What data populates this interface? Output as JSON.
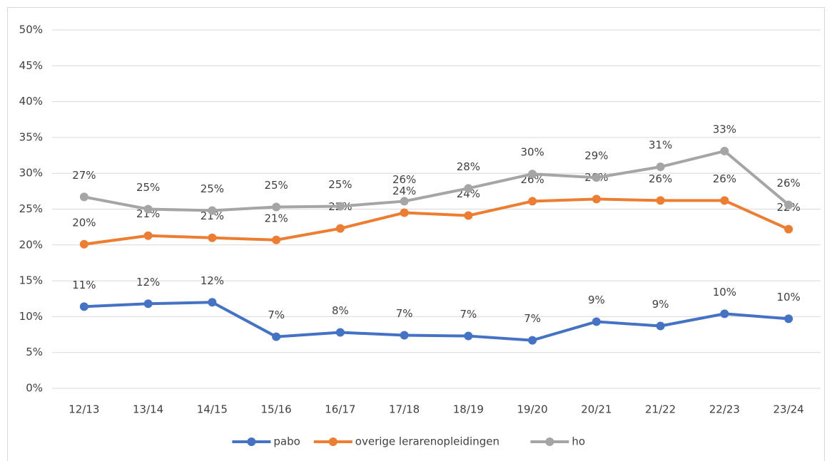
{
  "chart_data": {
    "type": "line",
    "categories": [
      "12/13",
      "13/14",
      "14/15",
      "15/16",
      "16/17",
      "17/18",
      "18/19",
      "19/20",
      "20/21",
      "21/22",
      "22/23",
      "23/24"
    ],
    "series": [
      {
        "name": "pabo",
        "color": "#4472c4",
        "values": [
          11.4,
          11.8,
          12.0,
          7.2,
          7.8,
          7.4,
          7.3,
          6.7,
          9.3,
          8.7,
          10.4,
          9.7
        ],
        "value_labels": [
          "11%",
          "12%",
          "12%",
          "7%",
          "8%",
          "7%",
          "7%",
          "7%",
          "9%",
          "9%",
          "10%",
          "10%"
        ]
      },
      {
        "name": "overige lerarenopleidingen",
        "color": "#ed7d31",
        "values": [
          20.1,
          21.3,
          21.0,
          20.7,
          22.3,
          24.5,
          24.1,
          26.1,
          26.4,
          26.2,
          26.2,
          22.2
        ],
        "value_labels": [
          "20%",
          "21%",
          "21%",
          "21%",
          "22%",
          "24%",
          "24%",
          "26%",
          "26%",
          "26%",
          "26%",
          "22%"
        ]
      },
      {
        "name": "ho",
        "color": "#a5a5a5",
        "values": [
          26.7,
          25.0,
          24.8,
          25.3,
          25.4,
          26.1,
          27.9,
          29.9,
          29.4,
          30.9,
          33.1,
          25.6
        ],
        "value_labels": [
          "27%",
          "25%",
          "25%",
          "25%",
          "25%",
          "26%",
          "28%",
          "30%",
          "29%",
          "31%",
          "33%",
          "26%"
        ]
      }
    ],
    "ylim": [
      0,
      50
    ],
    "yticks": [
      {
        "value": 0,
        "label": "0%"
      },
      {
        "value": 5,
        "label": "5%"
      },
      {
        "value": 10,
        "label": "10%"
      },
      {
        "value": 15,
        "label": "15%"
      },
      {
        "value": 20,
        "label": "20%"
      },
      {
        "value": 25,
        "label": "25%"
      },
      {
        "value": 30,
        "label": "30%"
      },
      {
        "value": 35,
        "label": "35%"
      },
      {
        "value": 40,
        "label": "40%"
      },
      {
        "value": 45,
        "label": "45%"
      },
      {
        "value": 50,
        "label": "50%"
      }
    ],
    "grid": true,
    "legend": "bottom"
  }
}
